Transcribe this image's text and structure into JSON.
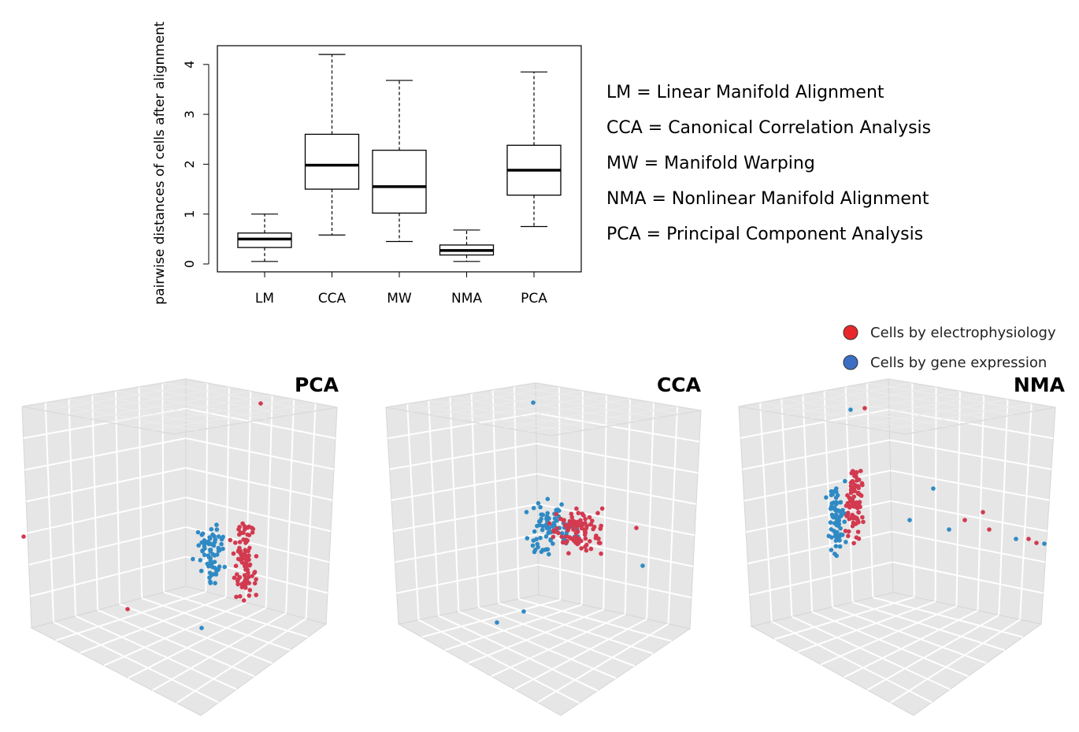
{
  "chart_data": [
    {
      "type": "box",
      "ylabel": "pairwise distances of cells after alignment",
      "ylim": [
        0,
        4.2
      ],
      "yticks": [
        "0",
        "1",
        "2",
        "3",
        "4"
      ],
      "categories": [
        "LM",
        "CCA",
        "MW",
        "NMA",
        "PCA"
      ],
      "boxes": [
        {
          "name": "LM",
          "whisker_low": 0.05,
          "q1": 0.33,
          "median": 0.5,
          "q3": 0.62,
          "whisker_high": 1.0
        },
        {
          "name": "CCA",
          "whisker_low": 0.58,
          "q1": 1.5,
          "median": 1.98,
          "q3": 2.6,
          "whisker_high": 4.2
        },
        {
          "name": "MW",
          "whisker_low": 0.45,
          "q1": 1.02,
          "median": 1.55,
          "q3": 2.28,
          "whisker_high": 3.68
        },
        {
          "name": "NMA",
          "whisker_low": 0.05,
          "q1": 0.18,
          "median": 0.27,
          "q3": 0.38,
          "whisker_high": 0.68
        },
        {
          "name": "PCA",
          "whisker_low": 0.75,
          "q1": 1.38,
          "median": 1.88,
          "q3": 2.38,
          "whisker_high": 3.85
        }
      ],
      "abbreviations": [
        "LM = Linear Manifold Alignment",
        "CCA = Canonical Correlation Analysis",
        "MW = Manifold Warping",
        "NMA = Nonlinear Manifold Alignment",
        "PCA = Principal Component Analysis"
      ]
    },
    {
      "type": "scatter",
      "title": "PCA",
      "series": [
        {
          "name": "Cells by electrophysiology",
          "color": "#d23a4f"
        },
        {
          "name": "Cells by gene expression",
          "color": "#2f8ac4"
        }
      ]
    },
    {
      "type": "scatter",
      "title": "CCA",
      "series": [
        {
          "name": "Cells by electrophysiology",
          "color": "#d23a4f"
        },
        {
          "name": "Cells by gene expression",
          "color": "#2f8ac4"
        }
      ]
    },
    {
      "type": "scatter",
      "title": "NMA",
      "series": [
        {
          "name": "Cells by electrophysiology",
          "color": "#d23a4f"
        },
        {
          "name": "Cells by gene expression",
          "color": "#2f8ac4"
        }
      ]
    }
  ],
  "legend": {
    "items": [
      {
        "label": "Cells by electrophysiology",
        "color": "#e8262c"
      },
      {
        "label": "Cells by gene expression",
        "color": "#3b6fc4"
      }
    ]
  },
  "colors": {
    "electrophysiology_point": "#d23a4f",
    "gene_expression_point": "#2f8ac4",
    "panel_face": "#e6e6e6",
    "grid": "#ffffff"
  }
}
